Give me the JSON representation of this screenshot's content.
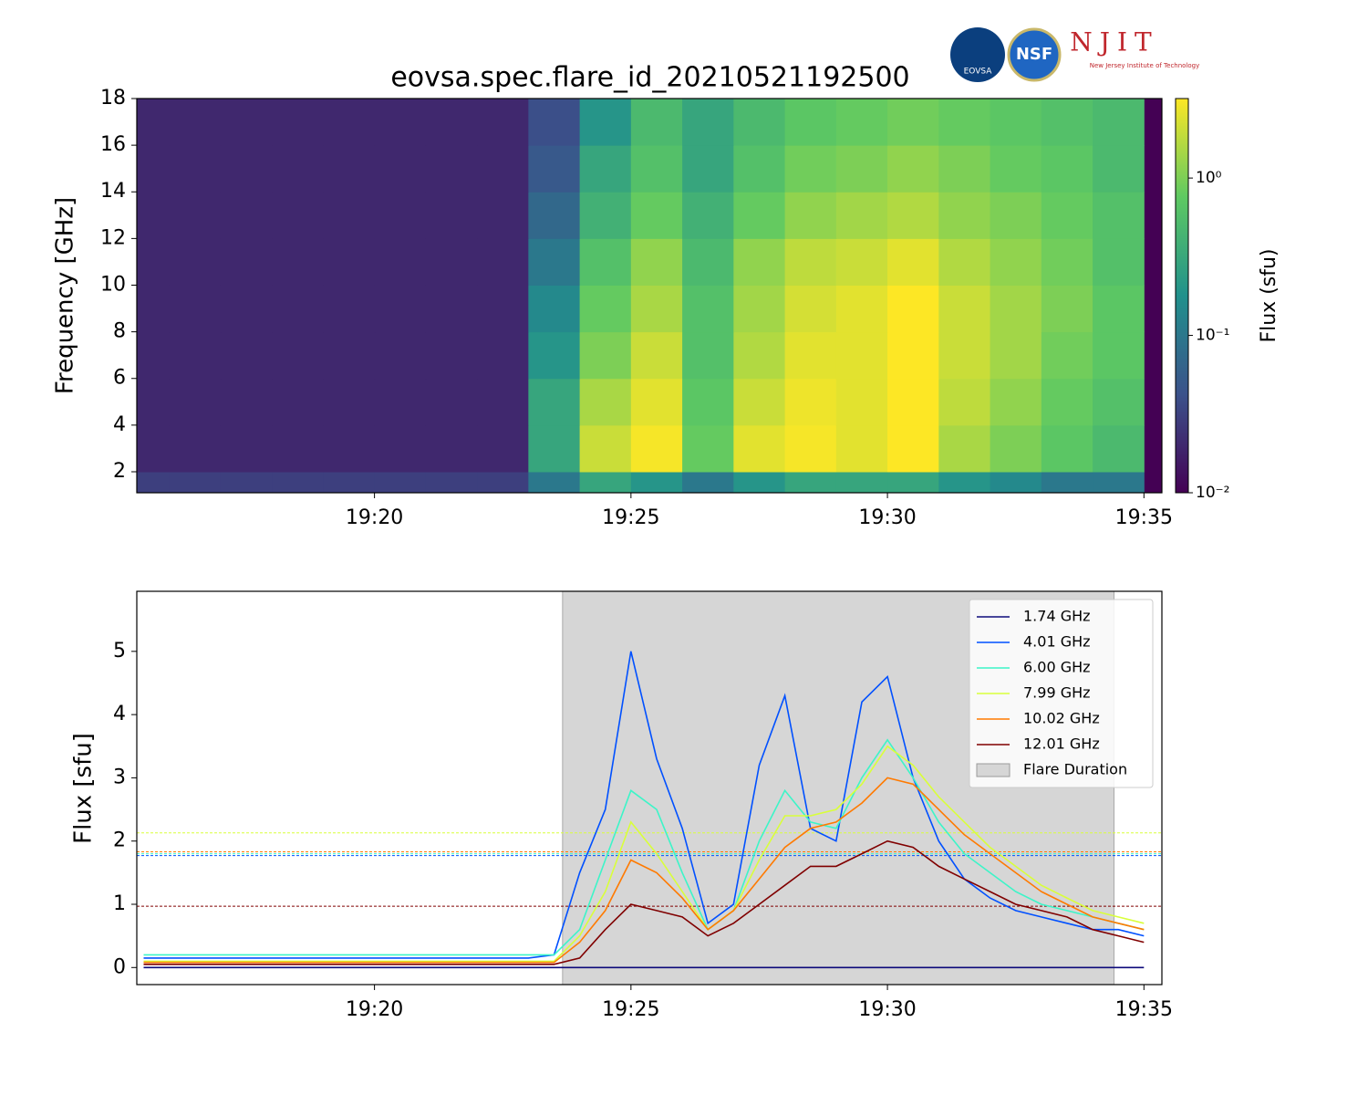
{
  "chart_data": [
    {
      "type": "heatmap",
      "title": "eovsa.spec.flare_id_20210521192500",
      "logos": [
        "EOVSA",
        "NSF",
        "NJIT",
        "New Jersey Institute of Technology"
      ],
      "y_label": "Frequency [GHz]",
      "colorbar_label": "Flux  (sfu)",
      "colormap": "viridis",
      "log_color": true,
      "clim": [
        0.01,
        3.2
      ],
      "cticks": [
        {
          "value": 0.01,
          "label": "10⁻²"
        },
        {
          "value": 0.1,
          "label": "10⁻¹"
        },
        {
          "value": 1,
          "label": "10⁰"
        }
      ],
      "xlim": [
        "19:15:22",
        "19:35:21"
      ],
      "xticks": [
        "19:20",
        "19:25",
        "19:30",
        "19:35"
      ],
      "ylim": [
        1.1,
        18
      ],
      "yticks": [
        2,
        4,
        6,
        8,
        10,
        12,
        14,
        16,
        18
      ],
      "x_edges": [
        "19:15",
        "19:16",
        "19:17",
        "19:18",
        "19:19",
        "19:20",
        "19:21",
        "19:22",
        "19:23",
        "19:24",
        "19:25",
        "19:26",
        "19:27",
        "19:28",
        "19:29",
        "19:30",
        "19:31",
        "19:32",
        "19:33",
        "19:34",
        "19:35"
      ],
      "y_edges": [
        1.1,
        2,
        4,
        6,
        8,
        10,
        12,
        14,
        16,
        18
      ],
      "z": [
        [
          0.03,
          0.03,
          0.03,
          0.03,
          0.03,
          0.03,
          0.03,
          0.03,
          0.1,
          0.3,
          0.2,
          0.1,
          0.2,
          0.3,
          0.3,
          0.3,
          0.2,
          0.15,
          0.1,
          0.1
        ],
        [
          0.02,
          0.02,
          0.02,
          0.02,
          0.02,
          0.02,
          0.02,
          0.02,
          0.3,
          2.0,
          3.0,
          0.8,
          2.5,
          3.0,
          2.5,
          3.5,
          1.5,
          1.0,
          0.7,
          0.5
        ],
        [
          0.02,
          0.02,
          0.02,
          0.02,
          0.02,
          0.02,
          0.02,
          0.02,
          0.3,
          1.5,
          2.5,
          0.7,
          2.0,
          2.8,
          2.5,
          3.5,
          1.8,
          1.2,
          0.8,
          0.6
        ],
        [
          0.02,
          0.02,
          0.02,
          0.02,
          0.02,
          0.02,
          0.02,
          0.02,
          0.2,
          1.0,
          2.0,
          0.6,
          1.6,
          2.5,
          2.5,
          3.5,
          2.0,
          1.4,
          0.9,
          0.7
        ],
        [
          0.02,
          0.02,
          0.02,
          0.02,
          0.02,
          0.02,
          0.02,
          0.02,
          0.15,
          0.8,
          1.5,
          0.6,
          1.4,
          2.2,
          2.5,
          3.2,
          2.0,
          1.4,
          1.0,
          0.7
        ],
        [
          0.02,
          0.02,
          0.02,
          0.02,
          0.02,
          0.02,
          0.02,
          0.02,
          0.1,
          0.6,
          1.2,
          0.5,
          1.2,
          1.8,
          2.0,
          2.5,
          1.6,
          1.2,
          0.9,
          0.6
        ],
        [
          0.02,
          0.02,
          0.02,
          0.02,
          0.02,
          0.02,
          0.02,
          0.02,
          0.07,
          0.4,
          0.8,
          0.4,
          0.8,
          1.2,
          1.4,
          1.6,
          1.2,
          1.0,
          0.8,
          0.6
        ],
        [
          0.02,
          0.02,
          0.02,
          0.02,
          0.02,
          0.02,
          0.02,
          0.02,
          0.05,
          0.3,
          0.6,
          0.3,
          0.6,
          0.9,
          1.0,
          1.2,
          1.0,
          0.8,
          0.7,
          0.5
        ],
        [
          0.02,
          0.02,
          0.02,
          0.02,
          0.02,
          0.02,
          0.02,
          0.02,
          0.04,
          0.2,
          0.5,
          0.3,
          0.5,
          0.7,
          0.8,
          0.9,
          0.8,
          0.7,
          0.6,
          0.5
        ]
      ]
    },
    {
      "type": "line",
      "y_label": "Flux [sfu]",
      "xlim": [
        "19:15:22",
        "19:35:21"
      ],
      "xticks": [
        "19:20",
        "19:25",
        "19:30",
        "19:35"
      ],
      "ylim": [
        -0.27,
        5.95
      ],
      "yticks": [
        0,
        1,
        2,
        3,
        4,
        5
      ],
      "legend": "upper right",
      "span": {
        "name": "Flare Duration",
        "x": [
          "19:23:40",
          "19:34:25"
        ],
        "color": "#d6d6d6"
      },
      "x": [
        "19:15:30",
        "19:16:00",
        "19:16:30",
        "19:17:00",
        "19:17:30",
        "19:18:00",
        "19:18:30",
        "19:19:00",
        "19:19:30",
        "19:20:00",
        "19:20:30",
        "19:21:00",
        "19:21:30",
        "19:22:00",
        "19:22:30",
        "19:23:00",
        "19:23:30",
        "19:24:00",
        "19:24:30",
        "19:25:00",
        "19:25:30",
        "19:26:00",
        "19:26:30",
        "19:27:00",
        "19:27:30",
        "19:28:00",
        "19:28:30",
        "19:29:00",
        "19:29:30",
        "19:30:00",
        "19:30:30",
        "19:31:00",
        "19:31:30",
        "19:32:00",
        "19:32:30",
        "19:33:00",
        "19:33:30",
        "19:34:00",
        "19:34:30",
        "19:35:00"
      ],
      "series": [
        {
          "name": "1.74 GHz",
          "color": "#0d0a7a",
          "values": [
            0,
            0,
            0,
            0,
            0,
            0,
            0,
            0,
            0,
            0,
            0,
            0,
            0,
            0,
            0,
            0,
            0,
            0,
            0,
            0,
            0,
            0,
            0,
            0,
            0,
            0,
            0,
            0,
            0,
            0,
            0,
            0,
            0,
            0,
            0,
            0,
            0,
            0,
            0,
            0
          ]
        },
        {
          "name": "4.01 GHz",
          "color": "#0050ff",
          "threshold": 1.77,
          "values": [
            0.15,
            0.15,
            0.15,
            0.15,
            0.15,
            0.15,
            0.15,
            0.15,
            0.15,
            0.15,
            0.15,
            0.15,
            0.15,
            0.15,
            0.15,
            0.15,
            0.2,
            1.5,
            2.5,
            5.0,
            3.3,
            2.2,
            0.7,
            1.0,
            3.2,
            4.3,
            2.2,
            2.0,
            4.2,
            4.6,
            3.0,
            2.0,
            1.4,
            1.1,
            0.9,
            0.8,
            0.7,
            0.6,
            0.6,
            0.5
          ]
        },
        {
          "name": "6.00 GHz",
          "color": "#3cf5c8",
          "threshold": 1.8,
          "values": [
            0.2,
            0.2,
            0.2,
            0.2,
            0.2,
            0.2,
            0.2,
            0.2,
            0.2,
            0.2,
            0.2,
            0.2,
            0.2,
            0.2,
            0.2,
            0.2,
            0.2,
            0.6,
            1.7,
            2.8,
            2.5,
            1.5,
            0.6,
            0.9,
            2.0,
            2.8,
            2.3,
            2.2,
            3.0,
            3.6,
            3.0,
            2.3,
            1.8,
            1.5,
            1.2,
            1.0,
            0.9,
            0.8,
            0.7,
            0.6
          ]
        },
        {
          "name": "7.99 GHz",
          "color": "#d9ff3a",
          "threshold": 2.13,
          "values": [
            0.1,
            0.1,
            0.1,
            0.1,
            0.1,
            0.1,
            0.1,
            0.1,
            0.1,
            0.1,
            0.1,
            0.1,
            0.1,
            0.1,
            0.1,
            0.1,
            0.1,
            0.5,
            1.2,
            2.3,
            1.8,
            1.2,
            0.6,
            0.9,
            1.7,
            2.4,
            2.4,
            2.5,
            2.9,
            3.5,
            3.2,
            2.7,
            2.3,
            1.9,
            1.6,
            1.3,
            1.1,
            0.9,
            0.8,
            0.7
          ]
        },
        {
          "name": "10.02 GHz",
          "color": "#ff7a00",
          "threshold": 1.83,
          "values": [
            0.08,
            0.08,
            0.08,
            0.08,
            0.08,
            0.08,
            0.08,
            0.08,
            0.08,
            0.08,
            0.08,
            0.08,
            0.08,
            0.08,
            0.08,
            0.08,
            0.08,
            0.4,
            0.9,
            1.7,
            1.5,
            1.1,
            0.6,
            0.9,
            1.4,
            1.9,
            2.2,
            2.3,
            2.6,
            3.0,
            2.9,
            2.5,
            2.1,
            1.8,
            1.5,
            1.2,
            1.0,
            0.8,
            0.7,
            0.6
          ]
        },
        {
          "name": "12.01 GHz",
          "color": "#800000",
          "threshold": 0.97,
          "values": [
            0.05,
            0.05,
            0.05,
            0.05,
            0.05,
            0.05,
            0.05,
            0.05,
            0.05,
            0.05,
            0.05,
            0.05,
            0.05,
            0.05,
            0.05,
            0.05,
            0.05,
            0.15,
            0.6,
            1.0,
            0.9,
            0.8,
            0.5,
            0.7,
            1.0,
            1.3,
            1.6,
            1.6,
            1.8,
            2.0,
            1.9,
            1.6,
            1.4,
            1.2,
            1.0,
            0.9,
            0.8,
            0.6,
            0.5,
            0.4
          ]
        }
      ]
    }
  ]
}
